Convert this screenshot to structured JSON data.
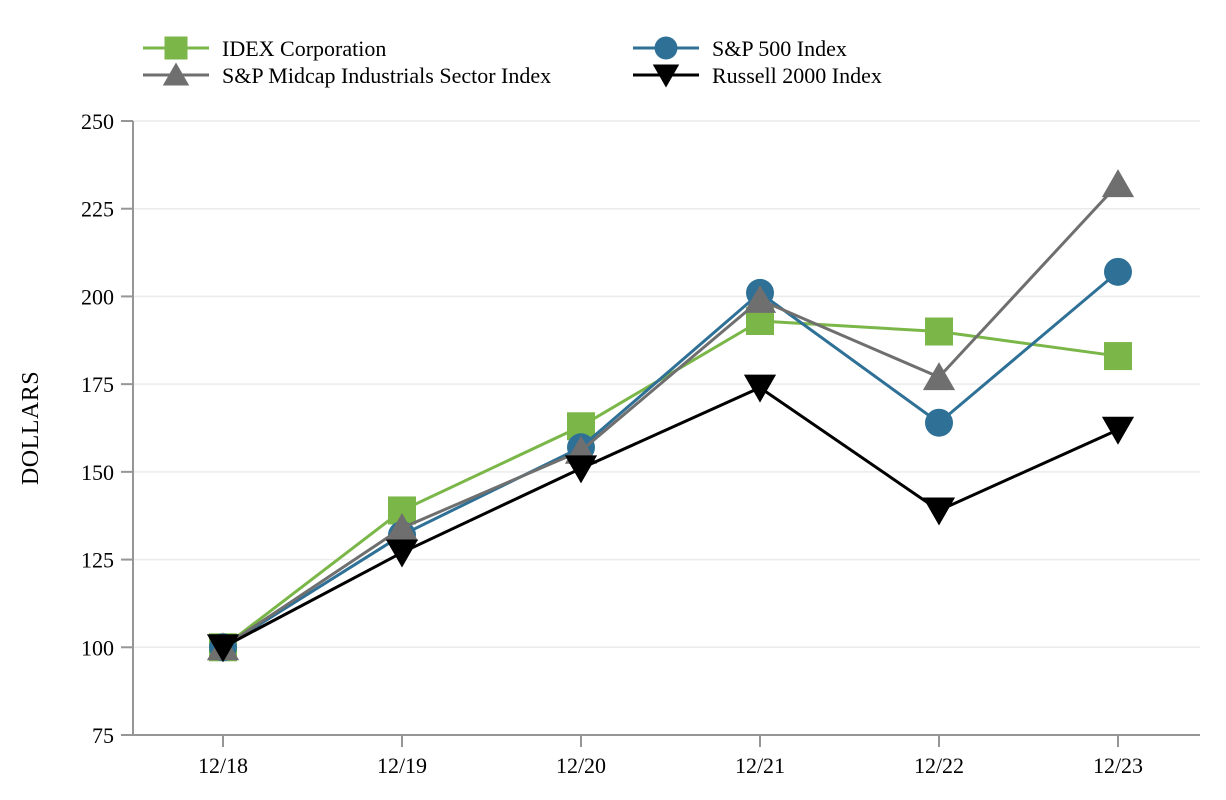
{
  "chart_data": {
    "type": "line",
    "title": "",
    "ylabel": "DOLLARS",
    "xlabel": "",
    "x_categories": [
      "12/18",
      "12/19",
      "12/20",
      "12/21",
      "12/22",
      "12/23"
    ],
    "yticks": [
      75,
      100,
      125,
      150,
      175,
      200,
      225,
      250
    ],
    "ylim": [
      75,
      250
    ],
    "grid": "horizontal",
    "legend_position": "top",
    "series": [
      {
        "name": "IDEX Corporation",
        "slug": "idex-corporation",
        "marker": "square",
        "color": "#7AB648",
        "values": [
          100,
          139,
          163,
          193,
          190,
          183
        ]
      },
      {
        "name": "S&P 500 Index",
        "slug": "sp-500-index",
        "marker": "circle",
        "color": "#2E7096",
        "values": [
          100,
          132,
          157,
          201,
          164,
          207
        ]
      },
      {
        "name": "S&P Midcap Industrials Sector Index",
        "slug": "sp-midcap-industrials-sector-index",
        "marker": "triangle-up",
        "color": "#6F6F6F",
        "values": [
          100,
          134,
          156,
          199,
          177,
          232
        ]
      },
      {
        "name": "Russell 2000 Index",
        "slug": "russell-2000-index",
        "marker": "triangle-down",
        "color": "#000000",
        "values": [
          100,
          127,
          151,
          174,
          139,
          162
        ]
      }
    ],
    "colors": {
      "axis": "#969696",
      "grid": "#EBEBEB",
      "text": "#000000",
      "background": "#FFFFFF"
    }
  }
}
